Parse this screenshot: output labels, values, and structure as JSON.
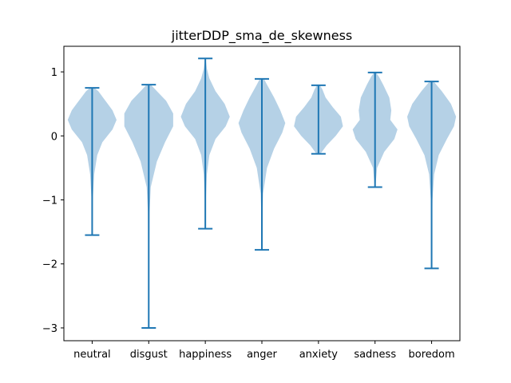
{
  "chart_data": {
    "type": "violin",
    "title": "jitterDDP_sma_de_skewness",
    "xlabel": "",
    "ylabel": "",
    "categories": [
      "neutral",
      "disgust",
      "happiness",
      "anger",
      "anxiety",
      "sadness",
      "boredom"
    ],
    "yticks": [
      1,
      0,
      -1,
      -2,
      -3
    ],
    "ytick_labels": [
      "1",
      "0",
      "−1",
      "−2",
      "−3"
    ],
    "ylim": [
      -3.2,
      1.4
    ],
    "grid": false,
    "colors": {
      "body": "#b5d1e6",
      "stats": "#1f77b4"
    },
    "series": [
      {
        "category": "neutral",
        "min": -1.55,
        "max": 0.75,
        "profile": [
          [
            -1.55,
            0.003
          ],
          [
            -1.0,
            0.006
          ],
          [
            -0.6,
            0.02
          ],
          [
            -0.3,
            0.05
          ],
          [
            -0.1,
            0.1
          ],
          [
            0.1,
            0.2
          ],
          [
            0.25,
            0.24
          ],
          [
            0.4,
            0.2
          ],
          [
            0.55,
            0.13
          ],
          [
            0.7,
            0.06
          ],
          [
            0.75,
            0.02
          ]
        ]
      },
      {
        "category": "disgust",
        "min": -3.0,
        "max": 0.8,
        "profile": [
          [
            -3.0,
            0.003
          ],
          [
            -2.0,
            0.004
          ],
          [
            -1.2,
            0.008
          ],
          [
            -0.8,
            0.02
          ],
          [
            -0.4,
            0.08
          ],
          [
            -0.1,
            0.16
          ],
          [
            0.15,
            0.24
          ],
          [
            0.35,
            0.24
          ],
          [
            0.55,
            0.17
          ],
          [
            0.7,
            0.08
          ],
          [
            0.8,
            0.02
          ]
        ]
      },
      {
        "category": "happiness",
        "min": -1.45,
        "max": 1.21,
        "profile": [
          [
            -1.45,
            0.003
          ],
          [
            -1.0,
            0.005
          ],
          [
            -0.6,
            0.015
          ],
          [
            -0.3,
            0.04
          ],
          [
            -0.05,
            0.1
          ],
          [
            0.15,
            0.2
          ],
          [
            0.3,
            0.24
          ],
          [
            0.5,
            0.19
          ],
          [
            0.7,
            0.1
          ],
          [
            0.9,
            0.04
          ],
          [
            1.05,
            0.015
          ],
          [
            1.21,
            0.003
          ]
        ]
      },
      {
        "category": "anger",
        "min": -1.78,
        "max": 0.89,
        "profile": [
          [
            -1.78,
            0.003
          ],
          [
            -1.3,
            0.005
          ],
          [
            -0.9,
            0.012
          ],
          [
            -0.5,
            0.05
          ],
          [
            -0.2,
            0.12
          ],
          [
            0.05,
            0.2
          ],
          [
            0.2,
            0.23
          ],
          [
            0.4,
            0.18
          ],
          [
            0.6,
            0.12
          ],
          [
            0.8,
            0.05
          ],
          [
            0.89,
            0.02
          ]
        ]
      },
      {
        "category": "anxiety",
        "min": -0.28,
        "max": 0.79,
        "profile": [
          [
            -0.28,
            0.02
          ],
          [
            -0.15,
            0.08
          ],
          [
            0.0,
            0.17
          ],
          [
            0.15,
            0.24
          ],
          [
            0.3,
            0.22
          ],
          [
            0.45,
            0.14
          ],
          [
            0.6,
            0.07
          ],
          [
            0.72,
            0.04
          ],
          [
            0.79,
            0.015
          ]
        ]
      },
      {
        "category": "sadness",
        "min": -0.8,
        "max": 0.99,
        "profile": [
          [
            -0.8,
            0.003
          ],
          [
            -0.5,
            0.02
          ],
          [
            -0.25,
            0.09
          ],
          [
            -0.05,
            0.19
          ],
          [
            0.1,
            0.22
          ],
          [
            0.25,
            0.15
          ],
          [
            0.4,
            0.16
          ],
          [
            0.6,
            0.14
          ],
          [
            0.8,
            0.08
          ],
          [
            0.92,
            0.04
          ],
          [
            0.99,
            0.01
          ]
        ]
      },
      {
        "category": "boredom",
        "min": -2.07,
        "max": 0.85,
        "profile": [
          [
            -2.07,
            0.003
          ],
          [
            -1.5,
            0.004
          ],
          [
            -1.0,
            0.008
          ],
          [
            -0.6,
            0.025
          ],
          [
            -0.3,
            0.07
          ],
          [
            -0.05,
            0.15
          ],
          [
            0.15,
            0.22
          ],
          [
            0.3,
            0.24
          ],
          [
            0.5,
            0.19
          ],
          [
            0.7,
            0.1
          ],
          [
            0.85,
            0.02
          ]
        ]
      }
    ]
  }
}
